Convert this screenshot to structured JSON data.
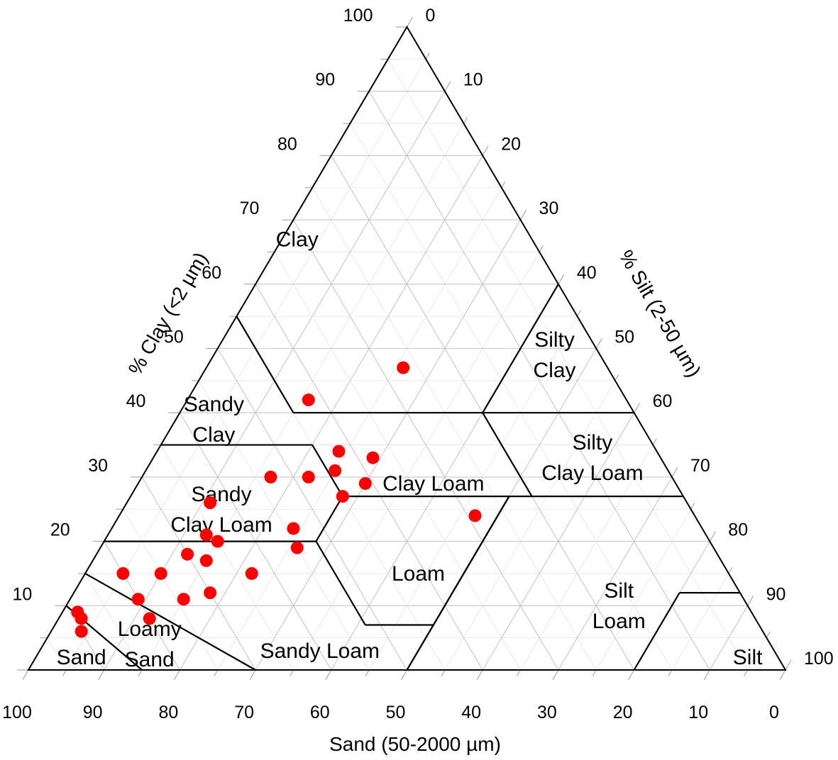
{
  "chart_data": {
    "type": "scatter",
    "chart_kind": "ternary",
    "xlabel": "Sand (50-2000 µm)",
    "clay_label": "% Clay (<2 µm)",
    "silt_label": "% Silt (2-50 µm)",
    "ticks": {
      "sand": [
        "100",
        "90",
        "80",
        "70",
        "60",
        "50",
        "40",
        "30",
        "20",
        "10",
        "0"
      ],
      "clay": [
        "0",
        "10",
        "20",
        "30",
        "40",
        "50",
        "60",
        "70",
        "80",
        "90",
        "100"
      ],
      "silt": [
        "0",
        "10",
        "20",
        "30",
        "40",
        "50",
        "60",
        "70",
        "80",
        "90",
        "100"
      ]
    },
    "grid": true,
    "marker_color": "#ff0000",
    "regions": [
      {
        "id": "clay",
        "lines": [
          "Clay"
        ],
        "sand": 31,
        "clay": 67
      },
      {
        "id": "silty-clay",
        "lines": [
          "Silty",
          "Clay"
        ],
        "sand": 6,
        "clay": 49
      },
      {
        "id": "sandy-clay",
        "lines": [
          "Sandy",
          "Clay"
        ],
        "sand": 56,
        "clay": 39
      },
      {
        "id": "silty-clay-loam",
        "lines": [
          "Silty",
          "Clay Loam"
        ],
        "sand": 9,
        "clay": 33
      },
      {
        "id": "clay-loam",
        "lines": [
          "Clay Loam"
        ],
        "sand": 32,
        "clay": 29
      },
      {
        "id": "sandy-clay-loam",
        "lines": [
          "Sandy",
          "Clay Loam"
        ],
        "sand": 62,
        "clay": 25
      },
      {
        "id": "loam",
        "lines": [
          "Loam"
        ],
        "sand": 41,
        "clay": 15
      },
      {
        "id": "silt-loam",
        "lines": [
          "Silt",
          "Loam"
        ],
        "sand": 17,
        "clay": 10
      },
      {
        "id": "sandy-loam",
        "lines": [
          "Sandy Loam"
        ],
        "sand": 60,
        "clay": 3
      },
      {
        "id": "loamy-sand",
        "lines": [
          "Loamy",
          "Sand"
        ],
        "sand": 82,
        "clay": 4
      },
      {
        "id": "sand",
        "lines": [
          "Sand"
        ],
        "sand": 92,
        "clay": 2
      },
      {
        "id": "silt",
        "lines": [
          "Silt"
        ],
        "sand": 4,
        "clay": 2
      }
    ],
    "points": [
      {
        "sand": 27,
        "clay": 47
      },
      {
        "sand": 42,
        "clay": 42
      },
      {
        "sand": 42,
        "clay": 34
      },
      {
        "sand": 38,
        "clay": 33
      },
      {
        "sand": 44,
        "clay": 31
      },
      {
        "sand": 53,
        "clay": 30
      },
      {
        "sand": 48,
        "clay": 30
      },
      {
        "sand": 41,
        "clay": 29
      },
      {
        "sand": 45,
        "clay": 27
      },
      {
        "sand": 29,
        "clay": 24
      },
      {
        "sand": 63,
        "clay": 26
      },
      {
        "sand": 66,
        "clay": 21
      },
      {
        "sand": 54,
        "clay": 22
      },
      {
        "sand": 65,
        "clay": 20
      },
      {
        "sand": 55,
        "clay": 19
      },
      {
        "sand": 70,
        "clay": 18
      },
      {
        "sand": 68,
        "clay": 17
      },
      {
        "sand": 63,
        "clay": 15
      },
      {
        "sand": 80,
        "clay": 15
      },
      {
        "sand": 75,
        "clay": 15
      },
      {
        "sand": 70,
        "clay": 12
      },
      {
        "sand": 74,
        "clay": 11
      },
      {
        "sand": 80,
        "clay": 11
      },
      {
        "sand": 80,
        "clay": 8
      },
      {
        "sand": 89,
        "clay": 9
      },
      {
        "sand": 89,
        "clay": 8
      },
      {
        "sand": 90,
        "clay": 6
      }
    ]
  }
}
